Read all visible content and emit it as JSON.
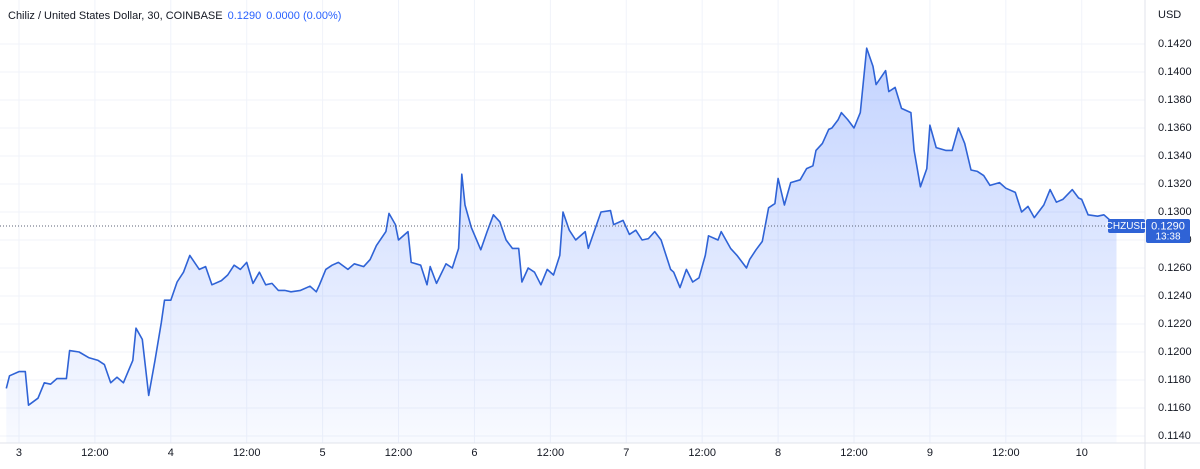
{
  "header": {
    "title": "Chiliz / United States Dollar, 30, COINBASE",
    "price": "0.1290",
    "change": "0.0000 (0.00%)"
  },
  "chart_data": {
    "type": "area",
    "y_unit": "USD",
    "x": [
      -2,
      -1.5,
      0,
      1,
      1.5,
      3,
      4,
      5,
      6,
      7.5,
      8,
      9.5,
      11,
      12.5,
      13.5,
      14.5,
      15.5,
      16.5,
      18,
      18.5,
      19.5,
      20.5,
      21.5,
      22.5,
      23,
      24,
      25,
      26,
      27,
      28.5,
      29.5,
      30.5,
      32,
      33,
      34,
      35,
      36,
      37,
      38,
      39,
      40,
      41,
      42,
      43,
      44.5,
      46,
      47,
      47.5,
      48.5,
      49.5,
      50.5,
      52,
      53,
      54.5,
      55.5,
      56.5,
      58,
      58.5,
      59.5,
      60,
      61.5,
      62,
      63.5,
      64.5,
      65,
      66,
      67.5,
      68.5,
      69.5,
      70,
      70.5,
      71.5,
      73,
      74,
      75,
      76,
      77,
      78,
      79,
      79.5,
      80.5,
      81.5,
      82.5,
      83.5,
      84.5,
      85.5,
      86,
      87,
      88,
      89.5,
      90,
      91,
      92,
      93.5,
      94,
      95.5,
      96.5,
      97.5,
      98.5,
      99.5,
      100.5,
      101.5,
      103,
      103.5,
      104.5,
      105.5,
      106.5,
      107.5,
      108.5,
      109,
      110.5,
      111,
      112.5,
      113.5,
      115,
      115.5,
      116.5,
      117.5,
      118.5,
      119.5,
      120,
      121,
      122,
      123.5,
      124.5,
      125.5,
      126,
      127,
      128,
      128.5,
      129.5,
      130,
      131,
      132,
      133,
      134,
      135,
      135.5,
      137,
      137.5,
      138.5,
      139.5,
      141,
      141.5,
      142.5,
      143.5,
      144,
      145,
      146.5,
      147.5,
      148.5,
      149.5,
      150.5,
      151.5,
      152.5,
      153.5,
      155,
      156,
      157.5,
      158.5,
      159.5,
      160.5,
      162,
      163,
      164,
      165,
      166.5,
      167.5,
      168,
      169,
      170.5,
      171.5,
      172.5,
      173.5
    ],
    "series": [
      {
        "name": "CHZUSD",
        "color": "#2f63d6",
        "values": [
          0.1174,
          0.1183,
          0.1186,
          0.1186,
          0.1162,
          0.1167,
          0.1178,
          0.1177,
          0.1181,
          0.1181,
          0.1201,
          0.12,
          0.1196,
          0.1194,
          0.1191,
          0.1178,
          0.1182,
          0.1178,
          0.1194,
          0.1217,
          0.1209,
          0.1169,
          0.1194,
          0.1221,
          0.1237,
          0.1237,
          0.125,
          0.1257,
          0.1269,
          0.1259,
          0.1261,
          0.1248,
          0.1251,
          0.1255,
          0.1262,
          0.1259,
          0.1264,
          0.1249,
          0.1257,
          0.1248,
          0.1249,
          0.1244,
          0.1244,
          0.1243,
          0.1244,
          0.1247,
          0.1243,
          0.1248,
          0.1259,
          0.1262,
          0.1264,
          0.1259,
          0.1263,
          0.1261,
          0.1266,
          0.1276,
          0.1286,
          0.1299,
          0.1291,
          0.128,
          0.1286,
          0.1264,
          0.1262,
          0.1248,
          0.1261,
          0.1249,
          0.1263,
          0.126,
          0.1274,
          0.1327,
          0.1305,
          0.1289,
          0.1273,
          0.1286,
          0.1298,
          0.1293,
          0.128,
          0.1274,
          0.1274,
          0.125,
          0.126,
          0.1257,
          0.1248,
          0.1259,
          0.1255,
          0.1269,
          0.13,
          0.1287,
          0.128,
          0.1286,
          0.1274,
          0.1287,
          0.13,
          0.1301,
          0.1291,
          0.1294,
          0.1284,
          0.1287,
          0.128,
          0.1281,
          0.1286,
          0.128,
          0.1259,
          0.1257,
          0.1246,
          0.1259,
          0.125,
          0.1253,
          0.1269,
          0.1283,
          0.128,
          0.1286,
          0.1274,
          0.1269,
          0.126,
          0.1266,
          0.1273,
          0.1279,
          0.1303,
          0.1306,
          0.1324,
          0.1305,
          0.1321,
          0.1323,
          0.1331,
          0.1333,
          0.1344,
          0.1349,
          0.1359,
          0.136,
          0.1366,
          0.1371,
          0.1366,
          0.136,
          0.1371,
          0.1417,
          0.1404,
          0.1391,
          0.1401,
          0.1386,
          0.1389,
          0.1374,
          0.1371,
          0.1344,
          0.1318,
          0.1331,
          0.1362,
          0.1346,
          0.1344,
          0.1344,
          0.136,
          0.1349,
          0.133,
          0.1329,
          0.1326,
          0.1319,
          0.1321,
          0.1317,
          0.1314,
          0.13,
          0.1304,
          0.1296,
          0.1305,
          0.1316,
          0.1307,
          0.1309,
          0.1316,
          0.131,
          0.1309,
          0.1298,
          0.1297,
          0.1298,
          0.1294,
          0.129
        ]
      }
    ],
    "xlim": [
      -3,
      178
    ],
    "xticks": [
      {
        "value": 0,
        "label": "3"
      },
      {
        "value": 12,
        "label": "12:00"
      },
      {
        "value": 24,
        "label": "4"
      },
      {
        "value": 36,
        "label": "12:00"
      },
      {
        "value": 48,
        "label": "5"
      },
      {
        "value": 60,
        "label": "12:00"
      },
      {
        "value": 72,
        "label": "6"
      },
      {
        "value": 84,
        "label": "12:00"
      },
      {
        "value": 96,
        "label": "7"
      },
      {
        "value": 108,
        "label": "12:00"
      },
      {
        "value": 120,
        "label": "8"
      },
      {
        "value": 132,
        "label": "12:00"
      },
      {
        "value": 144,
        "label": "9"
      },
      {
        "value": 156,
        "label": "12:00"
      },
      {
        "value": 168,
        "label": "10"
      }
    ],
    "ylim": [
      0.1135,
      0.14514
    ],
    "yticks": [
      {
        "value": 0.114,
        "label": "0.1140"
      },
      {
        "value": 0.116,
        "label": "0.1160"
      },
      {
        "value": 0.118,
        "label": "0.1180"
      },
      {
        "value": 0.12,
        "label": "0.1200"
      },
      {
        "value": 0.122,
        "label": "0.1220"
      },
      {
        "value": 0.124,
        "label": "0.1240"
      },
      {
        "value": 0.126,
        "label": "0.1260"
      },
      {
        "value": 0.128,
        "label": "0.1280"
      },
      {
        "value": 0.13,
        "label": "0.1300"
      },
      {
        "value": 0.132,
        "label": "0.1320"
      },
      {
        "value": 0.134,
        "label": "0.1340"
      },
      {
        "value": 0.136,
        "label": "0.1360"
      },
      {
        "value": 0.138,
        "label": "0.1380"
      },
      {
        "value": 0.14,
        "label": "0.1400"
      },
      {
        "value": 0.142,
        "label": "0.1420"
      }
    ],
    "grid": true,
    "price_line": {
      "name": "CHZUSD",
      "value": 0.129,
      "label": "0.1290",
      "countdown": "13:38"
    }
  }
}
